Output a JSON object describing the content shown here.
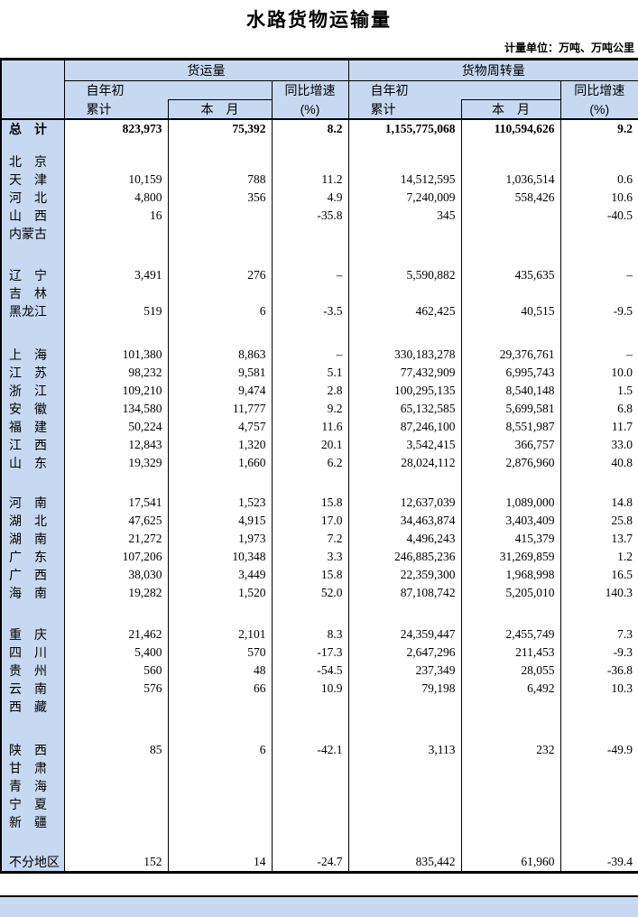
{
  "title": "水路货物运输量",
  "unit_note": "计量单位：万吨、万吨公里",
  "colors": {
    "header_bg": "#c6d9f0",
    "border": "#000000"
  },
  "table": {
    "headers": {
      "freight_volume": "货运量",
      "freight_turnover": "货物周转量",
      "cumulative_line1": "自年初",
      "cumulative_line2": "累计",
      "current_month": "本　月",
      "yoy_line1": "同比增速",
      "yoy_line2": "(%)"
    },
    "rows": [
      {
        "label": "总　计",
        "bold": true,
        "values": [
          "823,973",
          "75,392",
          "8.2",
          "1,155,775,068",
          "110,594,626",
          "9.2"
        ]
      },
      {
        "spacer": 16
      },
      {
        "label": "北　京",
        "values": [
          "",
          "",
          "",
          "",
          "",
          ""
        ]
      },
      {
        "label": "天　津",
        "values": [
          "10,159",
          "788",
          "11.2",
          "14,512,595",
          "1,036,514",
          "0.6"
        ]
      },
      {
        "label": "河　北",
        "values": [
          "4,800",
          "356",
          "4.9",
          "7,240,009",
          "558,426",
          "10.6"
        ]
      },
      {
        "label": "山　西",
        "values": [
          "16",
          "",
          "-35.8",
          "345",
          "",
          "-40.5"
        ]
      },
      {
        "label": "内蒙古",
        "values": [
          "",
          "",
          "",
          "",
          "",
          ""
        ]
      },
      {
        "spacer": 26
      },
      {
        "label": "辽　宁",
        "values": [
          "3,491",
          "276",
          "–",
          "5,590,882",
          "435,635",
          "–"
        ]
      },
      {
        "label": "吉　林",
        "values": [
          "",
          "",
          "",
          "",
          "",
          ""
        ]
      },
      {
        "label": "黑龙江",
        "values": [
          "519",
          "6",
          "-3.5",
          "462,425",
          "40,515",
          "-9.5"
        ]
      },
      {
        "spacer": 28
      },
      {
        "label": "上　海",
        "values": [
          "101,380",
          "8,863",
          "–",
          "330,183,278",
          "29,376,761",
          "–"
        ]
      },
      {
        "label": "江　苏",
        "values": [
          "98,232",
          "9,581",
          "5.1",
          "77,432,909",
          "6,995,743",
          "10.0"
        ]
      },
      {
        "label": "浙　江",
        "values": [
          "109,210",
          "9,474",
          "2.8",
          "100,295,135",
          "8,540,148",
          "1.5"
        ]
      },
      {
        "label": "安　徽",
        "values": [
          "134,580",
          "11,777",
          "9.2",
          "65,132,585",
          "5,699,581",
          "6.8"
        ]
      },
      {
        "label": "福　建",
        "values": [
          "50,224",
          "4,757",
          "11.6",
          "87,246,100",
          "8,551,987",
          "11.7"
        ]
      },
      {
        "label": "江　西",
        "values": [
          "12,843",
          "1,320",
          "20.1",
          "3,542,415",
          "366,757",
          "33.0"
        ]
      },
      {
        "label": "山　东",
        "values": [
          "19,329",
          "1,660",
          "6.2",
          "28,024,112",
          "2,876,960",
          "40.8"
        ]
      },
      {
        "spacer": 24
      },
      {
        "label": "河　南",
        "values": [
          "17,541",
          "1,523",
          "15.8",
          "12,637,039",
          "1,089,000",
          "14.8"
        ]
      },
      {
        "label": "湖　北",
        "values": [
          "47,625",
          "4,915",
          "17.0",
          "34,463,874",
          "3,403,409",
          "25.8"
        ]
      },
      {
        "label": "湖　南",
        "values": [
          "21,272",
          "1,973",
          "7.2",
          "4,496,243",
          "415,379",
          "13.7"
        ]
      },
      {
        "label": "广　东",
        "values": [
          "107,206",
          "10,348",
          "3.3",
          "246,885,236",
          "31,269,859",
          "1.2"
        ]
      },
      {
        "label": "广　西",
        "values": [
          "38,030",
          "3,449",
          "15.8",
          "22,359,300",
          "1,968,998",
          "16.5"
        ]
      },
      {
        "label": "海　南",
        "values": [
          "19,282",
          "1,520",
          "52.0",
          "87,108,742",
          "5,205,010",
          "140.3"
        ]
      },
      {
        "spacer": 26
      },
      {
        "label": "重　庆",
        "values": [
          "21,462",
          "2,101",
          "8.3",
          "24,359,447",
          "2,455,749",
          "7.3"
        ]
      },
      {
        "label": "四　川",
        "values": [
          "5,400",
          "570",
          "-17.3",
          "2,647,296",
          "211,453",
          "-9.3"
        ]
      },
      {
        "label": "贵　州",
        "values": [
          "560",
          "48",
          "-54.5",
          "237,349",
          "28,055",
          "-36.8"
        ]
      },
      {
        "label": "云　南",
        "values": [
          "576",
          "66",
          "10.9",
          "79,198",
          "6,492",
          "10.3"
        ]
      },
      {
        "label": "西　藏",
        "values": [
          "",
          "",
          "",
          "",
          "",
          ""
        ]
      },
      {
        "spacer": 28
      },
      {
        "label": "陕　西",
        "values": [
          "85",
          "6",
          "-42.1",
          "3,113",
          "232",
          "-49.9"
        ]
      },
      {
        "label": "甘　肃",
        "values": [
          "",
          "",
          "",
          "",
          "",
          ""
        ]
      },
      {
        "label": "青　海",
        "values": [
          "",
          "",
          "",
          "",
          "",
          ""
        ]
      },
      {
        "label": "宁　夏",
        "values": [
          "",
          "",
          "",
          "",
          "",
          ""
        ]
      },
      {
        "label": "新　疆",
        "values": [
          "",
          "",
          "",
          "",
          "",
          ""
        ]
      },
      {
        "spacer": 24
      },
      {
        "label": "不分地区",
        "values": [
          "152",
          "14",
          "-24.7",
          "835,442",
          "61,960",
          "-39.4"
        ]
      }
    ]
  }
}
